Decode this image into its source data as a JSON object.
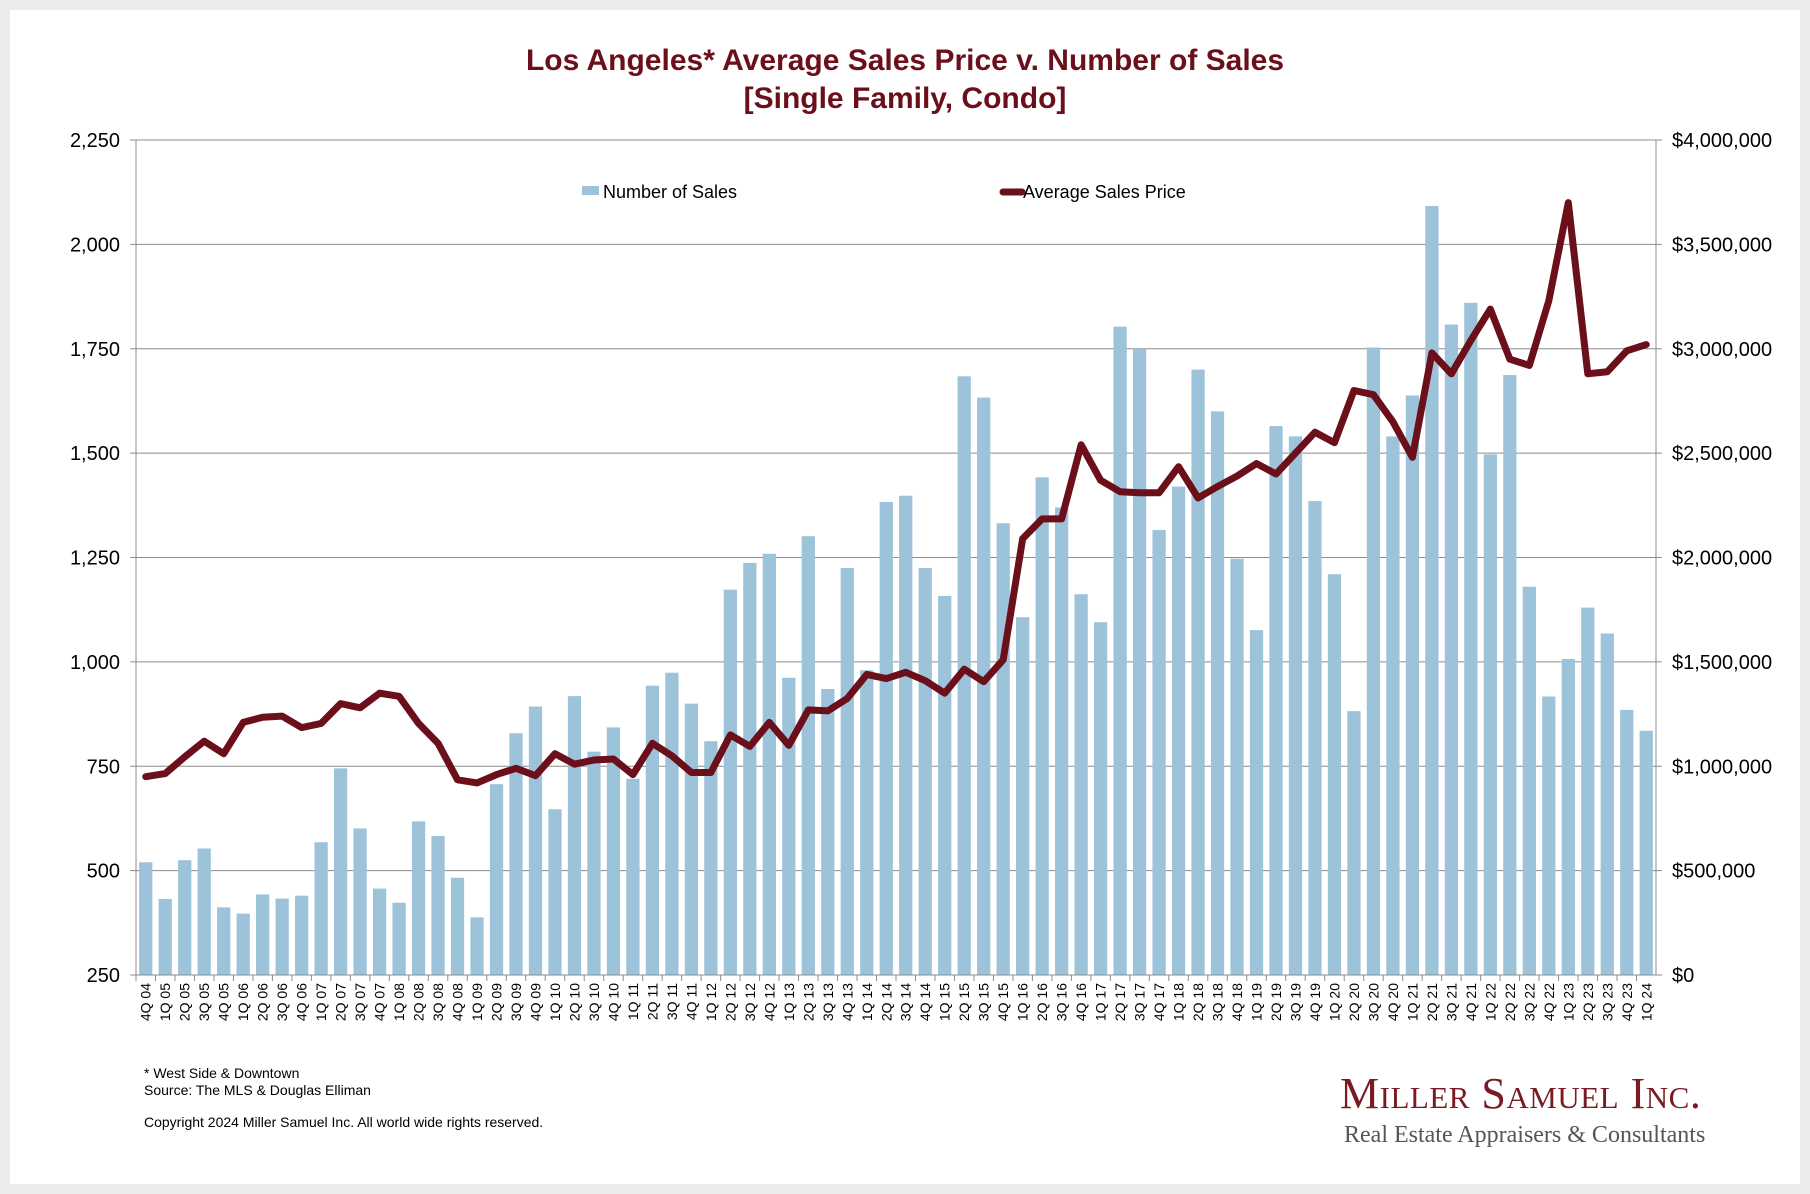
{
  "chart_data": {
    "type": "bar+line",
    "title": "Los Angeles* Average Sales Price v. Number of Sales",
    "subtitle": "[Single Family, Condo]",
    "categories": [
      "4Q 04",
      "1Q 05",
      "2Q 05",
      "3Q 05",
      "4Q 05",
      "1Q 06",
      "2Q 06",
      "3Q 06",
      "4Q 06",
      "1Q 07",
      "2Q 07",
      "3Q 07",
      "4Q 07",
      "1Q 08",
      "2Q 08",
      "3Q 08",
      "4Q 08",
      "1Q 09",
      "2Q 09",
      "3Q 09",
      "4Q 09",
      "1Q 10",
      "2Q 10",
      "3Q 10",
      "4Q 10",
      "1Q 11",
      "2Q 11",
      "3Q 11",
      "4Q 11",
      "1Q 12",
      "2Q 12",
      "3Q 12",
      "4Q 12",
      "1Q 13",
      "2Q 13",
      "3Q 13",
      "4Q 13",
      "1Q 14",
      "2Q 14",
      "3Q 14",
      "4Q 14",
      "1Q 15",
      "2Q 15",
      "3Q 15",
      "4Q 15",
      "1Q 16",
      "2Q 16",
      "3Q 16",
      "4Q 16",
      "1Q 17",
      "2Q 17",
      "3Q 17",
      "4Q 17",
      "1Q 18",
      "2Q 18",
      "3Q 18",
      "4Q 18",
      "1Q 19",
      "2Q 19",
      "3Q 19",
      "4Q 19",
      "1Q 20",
      "2Q 20",
      "3Q 20",
      "4Q 20",
      "1Q 21",
      "2Q 21",
      "3Q 21",
      "4Q 21",
      "1Q 22",
      "2Q 22",
      "3Q 22",
      "4Q 22",
      "1Q 23",
      "2Q 23",
      "3Q 23",
      "4Q 23",
      "1Q 24"
    ],
    "series": [
      {
        "name": "Number of Sales",
        "type": "bar",
        "axis": "left",
        "color": "#9dc3da",
        "values": [
          520,
          432,
          525,
          553,
          412,
          397,
          443,
          433,
          440,
          568,
          745,
          601,
          457,
          423,
          618,
          583,
          483,
          388,
          707,
          829,
          893,
          647,
          918,
          785,
          843,
          720,
          943,
          974,
          900,
          810,
          1173,
          1237,
          1259,
          962,
          1301,
          935,
          1225,
          980,
          1383,
          1398,
          1225,
          1158,
          1684,
          1633,
          1332,
          1107,
          1442,
          1370,
          1162,
          1095,
          1803,
          1750,
          1316,
          1420,
          1700,
          1600,
          1247,
          1076,
          1565,
          1540,
          1385,
          1210,
          882,
          1753,
          1540,
          1638,
          2092,
          1808,
          1860,
          1497,
          1687,
          1180,
          917,
          1007,
          1130,
          1068,
          885,
          835
        ]
      },
      {
        "name": "Average Sales Price",
        "type": "line",
        "axis": "right",
        "color": "#6b0f1a",
        "values": [
          950000,
          965000,
          1045000,
          1120000,
          1060000,
          1210000,
          1235000,
          1240000,
          1185000,
          1205000,
          1300000,
          1280000,
          1350000,
          1335000,
          1205000,
          1110000,
          935000,
          920000,
          960000,
          990000,
          955000,
          1060000,
          1010000,
          1030000,
          1035000,
          960000,
          1110000,
          1050000,
          970000,
          970000,
          1150000,
          1095000,
          1210000,
          1100000,
          1270000,
          1265000,
          1325000,
          1440000,
          1420000,
          1450000,
          1410000,
          1350000,
          1465000,
          1405000,
          1510000,
          2090000,
          2185000,
          2185000,
          2540000,
          2370000,
          2315000,
          2310000,
          2310000,
          2435000,
          2285000,
          2340000,
          2390000,
          2450000,
          2400000,
          2500000,
          2600000,
          2550000,
          2800000,
          2780000,
          2650000,
          2480000,
          2980000,
          2880000,
          3040000,
          3190000,
          2950000,
          2920000,
          3230000,
          3700000,
          2880000,
          2890000,
          2990000,
          3020000
        ]
      }
    ],
    "y_left": {
      "range": [
        250,
        2250
      ],
      "ticks": [
        "250",
        "500",
        "750",
        "1,000",
        "1,250",
        "1,500",
        "1,750",
        "2,000",
        "2,250"
      ]
    },
    "y_right": {
      "range": [
        0,
        4000000
      ],
      "ticks": [
        "$0",
        "$500,000",
        "$1,000,000",
        "$1,500,000",
        "$2,000,000",
        "$2,500,000",
        "$3,000,000",
        "$3,500,000",
        "$4,000,000"
      ]
    },
    "grid": true,
    "legend_position": "top-center"
  },
  "footer": {
    "note": "* West Side & Downtown",
    "source": "Source: The MLS & Douglas Elliman",
    "copyright": "Copyright 2024 Miller Samuel Inc.  All world wide rights reserved."
  },
  "logo": {
    "name": "Miller Samuel Inc.",
    "tagline": "Real Estate Appraisers & Consultants"
  }
}
